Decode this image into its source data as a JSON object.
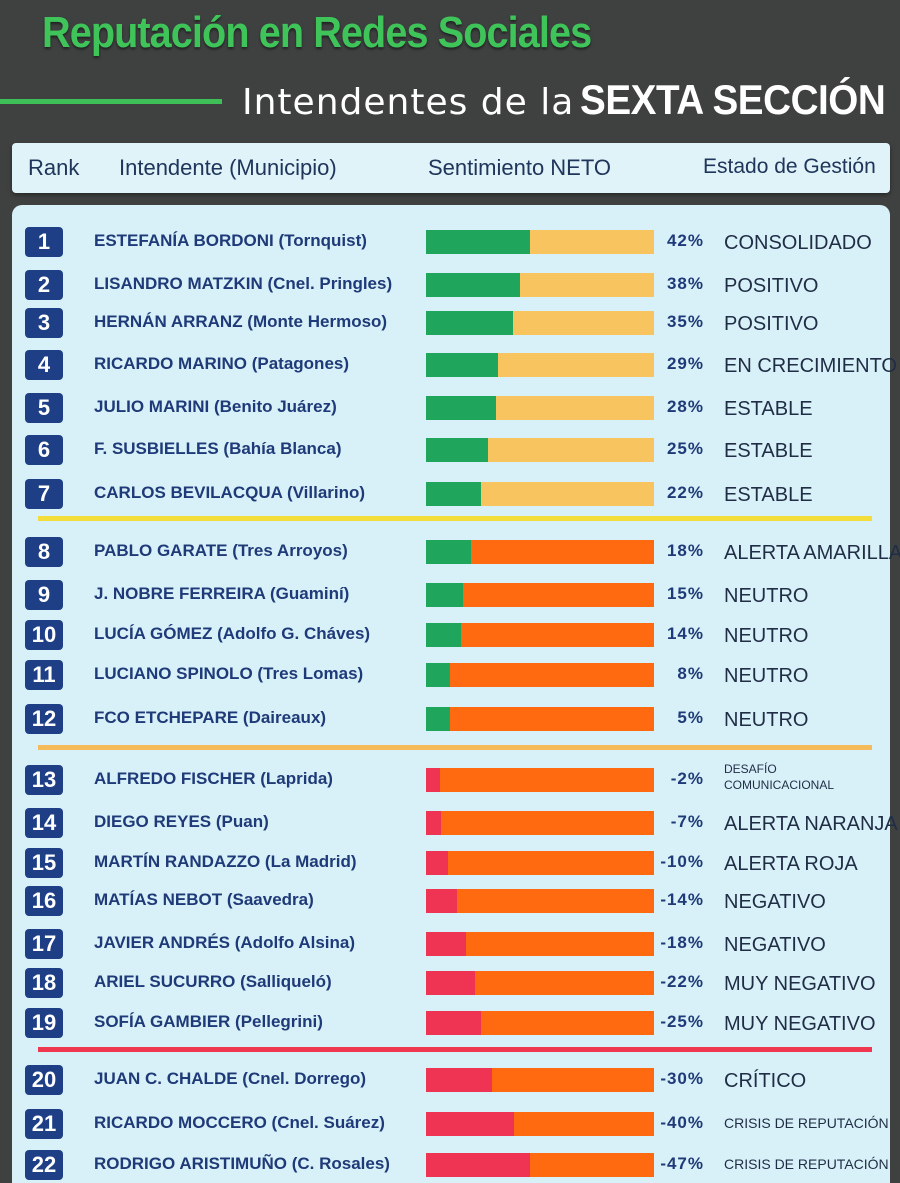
{
  "header": {
    "title": "Reputación en Redes Sociales",
    "subtitle_light": "Intendentes de la",
    "subtitle_strong": "SEXTA SECCIÓN"
  },
  "columns": {
    "rank": "Rank",
    "intendente": "Intendente (Municipio)",
    "sentimiento": "Sentimiento NETO",
    "estado": "Estado de Gestión"
  },
  "colors": {
    "positive": "#20a55c",
    "negative": "#ee3452",
    "rest_light": "#f7c460",
    "rest_dark": "#ff6a10",
    "sep_yellow": "#f3dd3a",
    "sep_orange": "#f5bb5a",
    "sep_red": "#f03750"
  },
  "chart_data": {
    "type": "bar",
    "title": "Reputación en Redes Sociales",
    "ylabel": "Sentimiento NETO",
    "ylim": [
      -50,
      50
    ],
    "rows": [
      {
        "rank": "1",
        "name": "ESTEFANÍA BORDONI (Tornquist)",
        "value": 42,
        "label": "42%",
        "status": "CONSOLIDADO"
      },
      {
        "rank": "2",
        "name": "LISANDRO MATZKIN (Cnel. Pringles)",
        "value": 38,
        "label": "38%",
        "status": "POSITIVO"
      },
      {
        "rank": "3",
        "name": "HERNÁN ARRANZ (Monte Hermoso)",
        "value": 35,
        "label": "35%",
        "status": "POSITIVO"
      },
      {
        "rank": "4",
        "name": "RICARDO MARINO (Patagones)",
        "value": 29,
        "label": "29%",
        "status": "EN CRECIMIENTO"
      },
      {
        "rank": "5",
        "name": "JULIO MARINI (Benito Juárez)",
        "value": 28,
        "label": "28%",
        "status": "ESTABLE"
      },
      {
        "rank": "6",
        "name": "F. SUSBIELLES (Bahía Blanca)",
        "value": 25,
        "label": "25%",
        "status": "ESTABLE"
      },
      {
        "rank": "7",
        "name": "CARLOS BEVILACQUA (Villarino)",
        "value": 22,
        "label": "22%",
        "status": "ESTABLE"
      },
      {
        "rank": "8",
        "name": "PABLO GARATE (Tres Arroyos)",
        "value": 18,
        "label": "18%",
        "status": "ALERTA AMARILLA"
      },
      {
        "rank": "9",
        "name": "J. NOBRE FERREIRA (Guaminí)",
        "value": 15,
        "label": "15%",
        "status": "NEUTRO"
      },
      {
        "rank": "10",
        "name": "LUCÍA GÓMEZ (Adolfo G. Cháves)",
        "value": 14,
        "label": "14%",
        "status": "NEUTRO"
      },
      {
        "rank": "11",
        "name": "LUCIANO SPINOLO (Tres Lomas)",
        "value": 8,
        "label": "8%",
        "status": "NEUTRO"
      },
      {
        "rank": "12",
        "name": "FCO ETCHEPARE (Daireaux)",
        "value": 5,
        "label": "5%",
        "status": "NEUTRO"
      },
      {
        "rank": "13",
        "name": "ALFREDO FISCHER (Laprida)",
        "value": -2,
        "label": "-2%",
        "status": "DESAFÍO COMUNICACIONAL"
      },
      {
        "rank": "14",
        "name": "DIEGO REYES (Puan)",
        "value": -7,
        "label": "-7%",
        "status": "ALERTA NARANJA"
      },
      {
        "rank": "15",
        "name": "MARTÍN RANDAZZO (La Madrid)",
        "value": -10,
        "label": "-10%",
        "status": "ALERTA ROJA"
      },
      {
        "rank": "16",
        "name": "MATÍAS NEBOT (Saavedra)",
        "value": -14,
        "label": "-14%",
        "status": "NEGATIVO"
      },
      {
        "rank": "17",
        "name": "JAVIER ANDRÉS (Adolfo Alsina)",
        "value": -18,
        "label": "-18%",
        "status": "NEGATIVO"
      },
      {
        "rank": "18",
        "name": "ARIEL SUCURRO (Salliqueló)",
        "value": -22,
        "label": "-22%",
        "status": "MUY NEGATIVO"
      },
      {
        "rank": "19",
        "name": "SOFÍA GAMBIER (Pellegrini)",
        "value": -25,
        "label": "-25%",
        "status": "MUY NEGATIVO"
      },
      {
        "rank": "20",
        "name": "JUAN C. CHALDE (Cnel. Dorrego)",
        "value": -30,
        "label": "-30%",
        "status": "CRÍTICO"
      },
      {
        "rank": "21",
        "name": "RICARDO MOCCERO (Cnel. Suárez)",
        "value": -40,
        "label": "-40%",
        "status": "CRISIS DE REPUTACIÓN"
      },
      {
        "rank": "22",
        "name": "RODRIGO ARISTIMUÑO (C. Rosales)",
        "value": -47,
        "label": "-47%",
        "status": "CRISIS DE REPUTACIÓN"
      }
    ]
  }
}
